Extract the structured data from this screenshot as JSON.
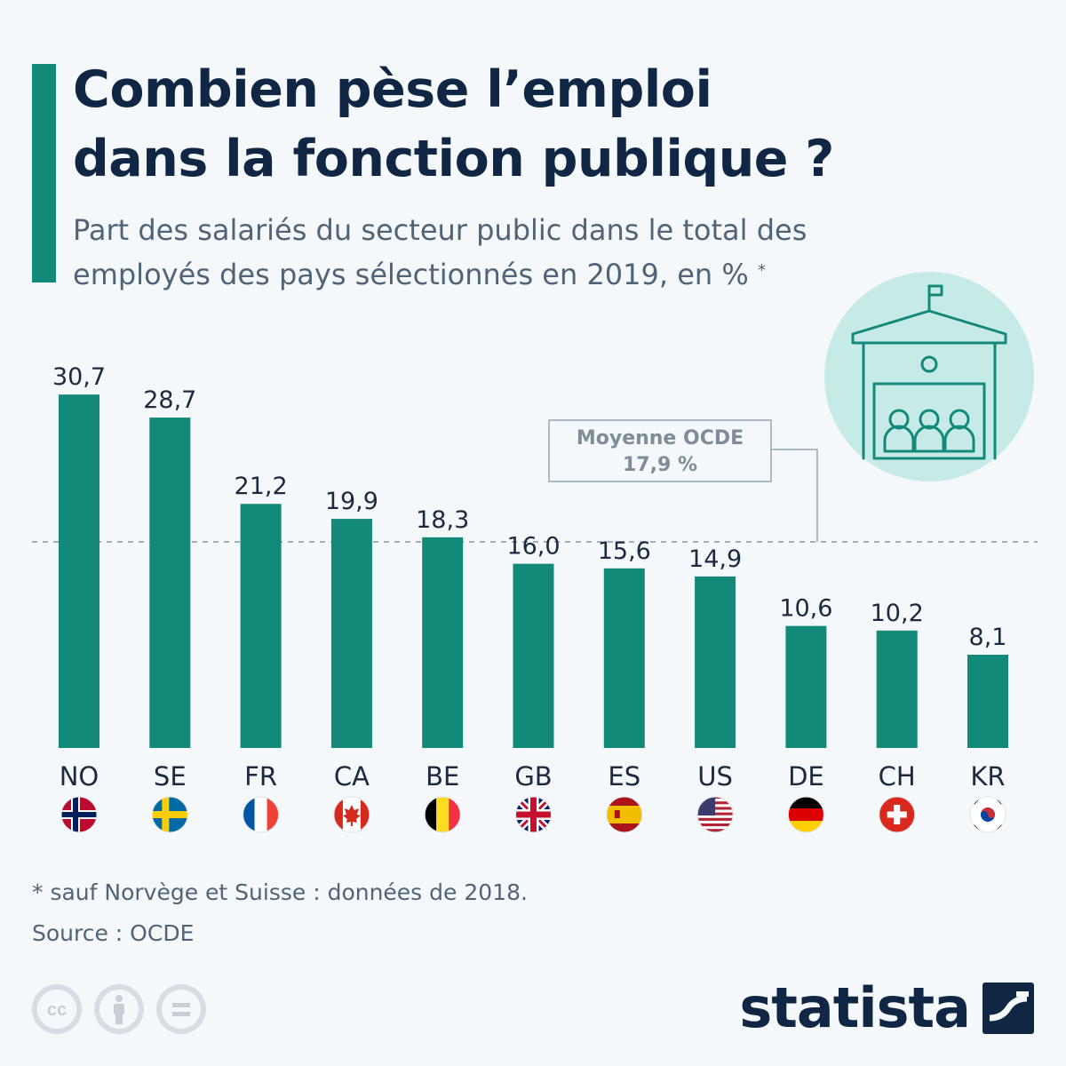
{
  "header": {
    "title_line1": "Combien pèse l’emploi",
    "title_line2": "dans la fonction publique ?",
    "subtitle_line1": "Part des salariés du secteur public dans le total des",
    "subtitle_line2": "employés des pays sélectionnés en 2019, en %",
    "subtitle_marker": "*"
  },
  "chart_data": {
    "type": "bar",
    "categories": [
      "NO",
      "SE",
      "FR",
      "CA",
      "BE",
      "GB",
      "ES",
      "US",
      "DE",
      "CH",
      "KR"
    ],
    "values": [
      30.7,
      28.7,
      21.2,
      19.9,
      18.3,
      16.0,
      15.6,
      14.9,
      10.6,
      10.2,
      8.1
    ],
    "value_labels": [
      "30,7",
      "28,7",
      "21,2",
      "19,9",
      "18,3",
      "16,0",
      "15,6",
      "14,9",
      "10,6",
      "10,2",
      "8,1"
    ],
    "bar_color": "#13897a",
    "reference_line": {
      "value": 17.9,
      "label_line1": "Moyenne OCDE",
      "label_line2": "17,9 %"
    },
    "grid": false
  },
  "flags": {
    "NO": "norway-flag-icon",
    "SE": "sweden-flag-icon",
    "FR": "france-flag-icon",
    "CA": "canada-flag-icon",
    "BE": "belgium-flag-icon",
    "GB": "uk-flag-icon",
    "ES": "spain-flag-icon",
    "US": "usa-flag-icon",
    "DE": "germany-flag-icon",
    "CH": "switzerland-flag-icon",
    "KR": "south-korea-flag-icon"
  },
  "footer": {
    "footnote": "* sauf Norvège et Suisse : données de 2018.",
    "source": "Source : OCDE",
    "brand": "statista"
  },
  "colors": {
    "accent": "#13897a",
    "title": "#0f2744",
    "text": "#4f6577",
    "background": "#f5f8fb"
  }
}
